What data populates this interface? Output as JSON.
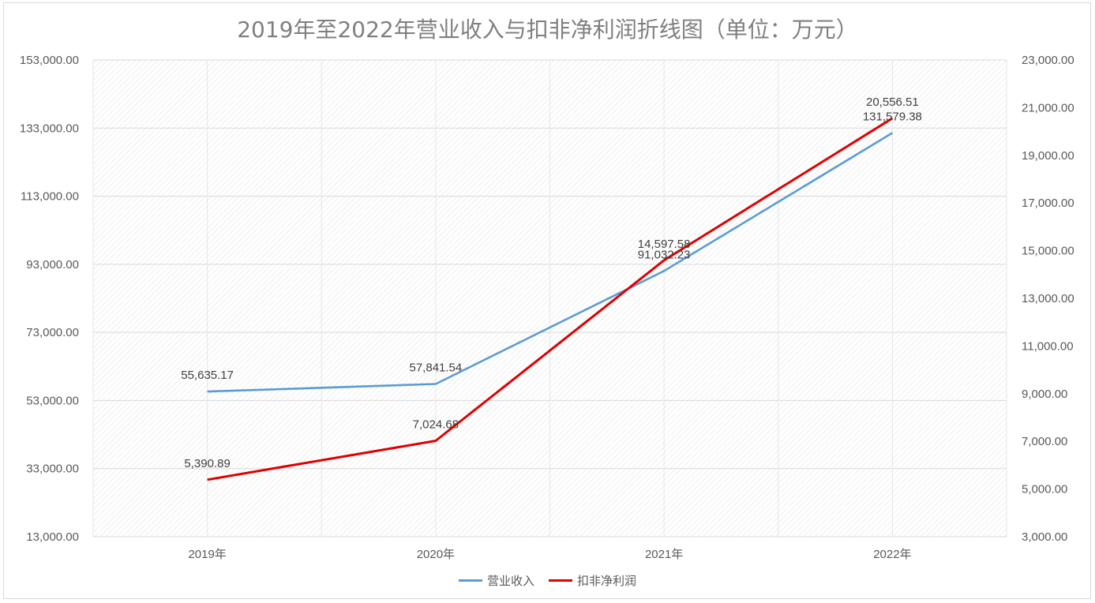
{
  "chart_data": {
    "type": "line",
    "title": "2019年至2022年营业收入与扣非净利润折线图（单位：万元）",
    "categories": [
      "2019年",
      "2020年",
      "2021年",
      "2022年"
    ],
    "series": [
      {
        "name": "营业收入",
        "axis": "left",
        "color": "#5b9bd5",
        "values": [
          55635.17,
          57841.54,
          91032.23,
          131579.38
        ],
        "labels": [
          "55,635.17",
          "57,841.54",
          "91,032.23",
          "131,579.38"
        ]
      },
      {
        "name": "扣非净利润",
        "axis": "right",
        "color": "#e00000",
        "values": [
          5390.89,
          7024.68,
          14597.58,
          20556.51
        ],
        "labels": [
          "5,390.89",
          "7,024.68",
          "14,597.58",
          "20,556.51"
        ]
      }
    ],
    "y_left": {
      "ylim": [
        13000,
        153000
      ],
      "ticks": [
        "13,000.00",
        "33,000.00",
        "53,000.00",
        "73,000.00",
        "93,000.00",
        "113,000.00",
        "133,000.00",
        "153,000.00"
      ]
    },
    "y_right": {
      "ylim": [
        3000,
        23000
      ],
      "ticks": [
        "3,000.00",
        "5,000.00",
        "7,000.00",
        "9,000.00",
        "11,000.00",
        "13,000.00",
        "15,000.00",
        "17,000.00",
        "19,000.00",
        "21,000.00",
        "23,000.00"
      ]
    },
    "grid": true,
    "legend_position": "bottom"
  }
}
